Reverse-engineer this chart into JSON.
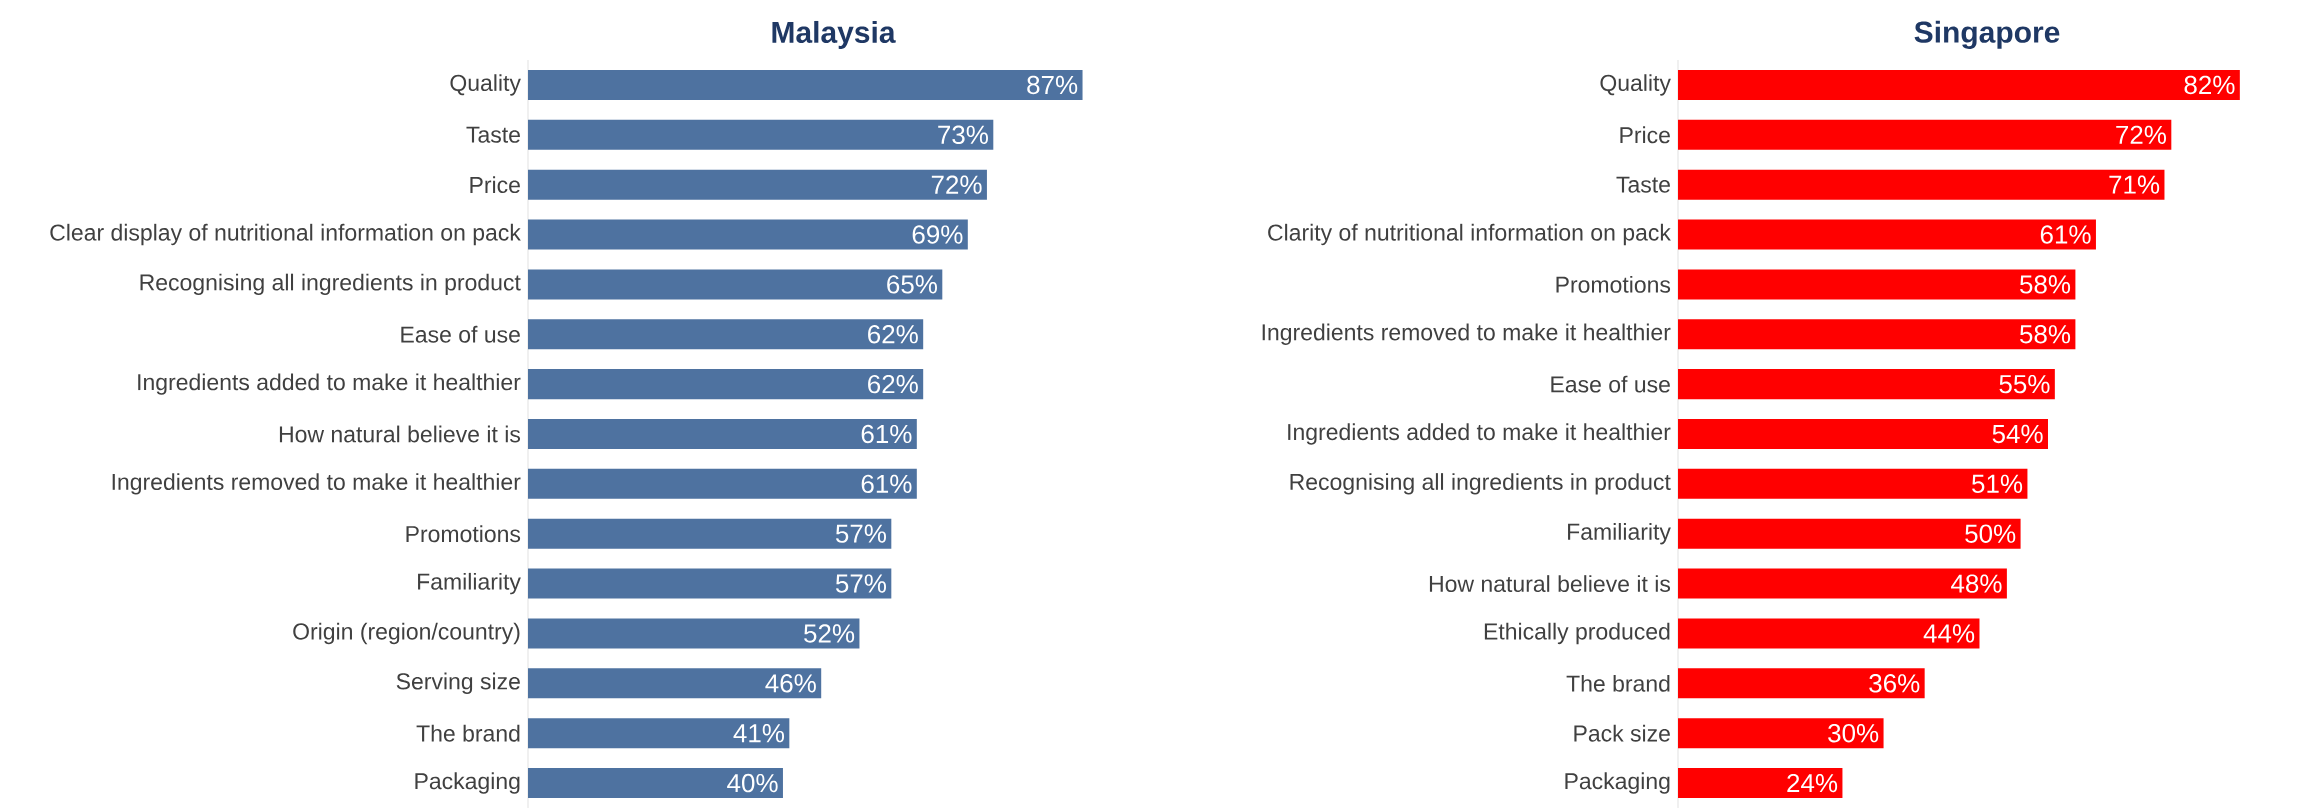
{
  "chart_data": [
    {
      "type": "bar",
      "orientation": "horizontal",
      "title": "Malaysia",
      "color": "#4e72a0",
      "tick_labels": "y",
      "categories": [
        "Quality",
        "Taste",
        "Price",
        "Clear display of nutritional information on pack",
        "Recognising all ingredients in product",
        "Ease of use",
        "Ingredients added to make it healthier",
        "How natural believe it is",
        "Ingredients removed to make it healthier",
        "Promotions",
        "Familiarity",
        "Origin (region/country)",
        "Serving size",
        "The brand",
        "Packaging"
      ],
      "values": [
        87,
        73,
        72,
        69,
        65,
        62,
        62,
        61,
        61,
        57,
        57,
        52,
        46,
        41,
        40
      ],
      "value_labels": [
        "87%",
        "73%",
        "72%",
        "69%",
        "65%",
        "62%",
        "62%",
        "61%",
        "61%",
        "57%",
        "57%",
        "52%",
        "46%",
        "41%",
        "40%"
      ]
    },
    {
      "type": "bar",
      "orientation": "horizontal",
      "title": "Singapore",
      "color": "#ff0000",
      "tick_labels": "y",
      "categories": [
        "Quality",
        "Price",
        "Taste",
        "Clarity of nutritional information on pack",
        "Promotions",
        "Ingredients removed to make it healthier",
        "Ease of use",
        "Ingredients added to make it healthier",
        "Recognising all ingredients in product",
        "Familiarity",
        "How natural believe it is",
        "Ethically produced",
        "The brand",
        "Pack size",
        "Packaging"
      ],
      "values": [
        82,
        72,
        71,
        61,
        58,
        58,
        55,
        54,
        51,
        50,
        48,
        44,
        36,
        30,
        24
      ],
      "value_labels": [
        "82%",
        "72%",
        "71%",
        "61%",
        "58%",
        "58%",
        "55%",
        "54%",
        "51%",
        "50%",
        "48%",
        "44%",
        "36%",
        "30%",
        "24%"
      ]
    }
  ]
}
